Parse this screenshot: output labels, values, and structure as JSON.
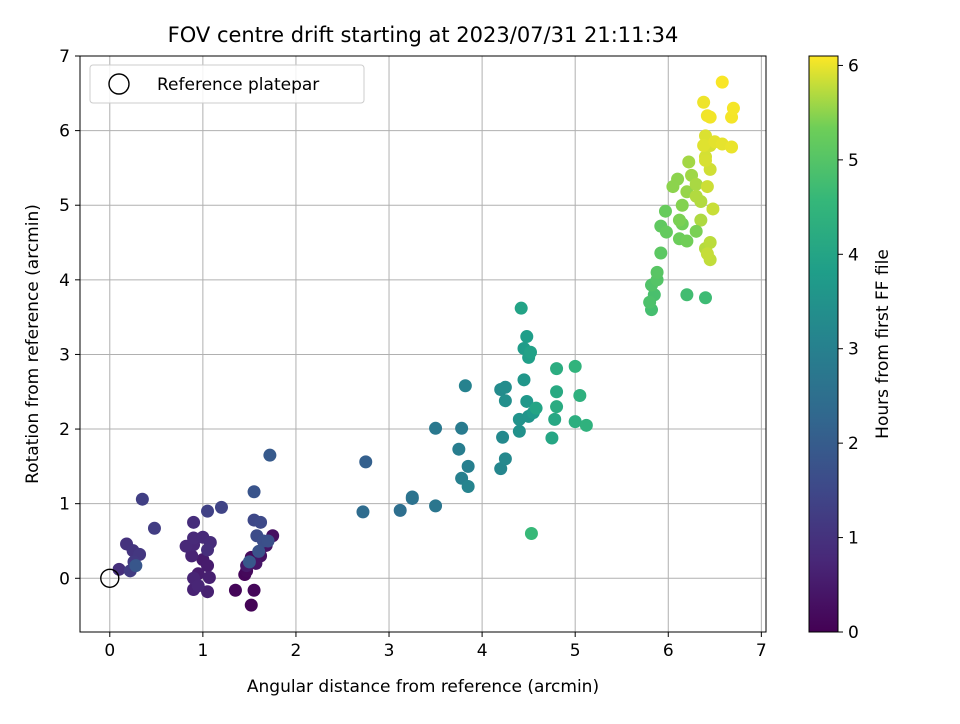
{
  "chart_data": {
    "type": "scatter",
    "title": "FOV centre drift starting at 2023/07/31 21:11:34",
    "xlabel": "Angular distance from reference (arcmin)",
    "ylabel": "Rotation from reference (arcmin)",
    "xlim": [
      -0.32,
      7.05
    ],
    "ylim": [
      -0.72,
      7.0
    ],
    "xticks": [
      0,
      1,
      2,
      3,
      4,
      5,
      6,
      7
    ],
    "yticks": [
      0,
      1,
      2,
      3,
      4,
      5,
      6,
      7
    ],
    "grid": true,
    "legend": {
      "placement": "upper-left",
      "entries": [
        {
          "label": "Reference platepar",
          "marker": "open-circle"
        }
      ]
    },
    "reference_point": {
      "x": 0,
      "y": 0,
      "label": "Reference platepar"
    },
    "colorbar": {
      "label": "Hours from first FF file",
      "colormap": "viridis",
      "range": [
        0,
        6.1
      ],
      "ticks": [
        0,
        1,
        2,
        3,
        4,
        5,
        6
      ]
    },
    "points": [
      {
        "x": 1.45,
        "y": 0.05,
        "h": 0.1
      },
      {
        "x": 1.52,
        "y": -0.36,
        "h": 0.05
      },
      {
        "x": 1.35,
        "y": -0.16,
        "h": 0.1
      },
      {
        "x": 1.55,
        "y": -0.16,
        "h": 0.12
      },
      {
        "x": 1.47,
        "y": 0.1,
        "h": 0.15
      },
      {
        "x": 1.52,
        "y": 0.28,
        "h": 0.2
      },
      {
        "x": 1.75,
        "y": 0.57,
        "h": 0.25
      },
      {
        "x": 1.62,
        "y": 0.3,
        "h": 0.3
      },
      {
        "x": 1.68,
        "y": 0.44,
        "h": 0.35
      },
      {
        "x": 1.57,
        "y": 0.2,
        "h": 0.4
      },
      {
        "x": 1.47,
        "y": 0.17,
        "h": 0.45
      },
      {
        "x": 1.0,
        "y": 0.25,
        "h": 0.5
      },
      {
        "x": 1.05,
        "y": 0.17,
        "h": 0.52
      },
      {
        "x": 0.95,
        "y": 0.06,
        "h": 0.55
      },
      {
        "x": 1.07,
        "y": 0.01,
        "h": 0.6
      },
      {
        "x": 1.05,
        "y": -0.18,
        "h": 0.62
      },
      {
        "x": 0.9,
        "y": -0.15,
        "h": 0.65
      },
      {
        "x": 0.88,
        "y": 0.3,
        "h": 0.68
      },
      {
        "x": 0.9,
        "y": 0.0,
        "h": 0.7
      },
      {
        "x": 0.95,
        "y": -0.1,
        "h": 0.72
      },
      {
        "x": 0.9,
        "y": 0.45,
        "h": 0.75
      },
      {
        "x": 0.82,
        "y": 0.43,
        "h": 0.78
      },
      {
        "x": 0.9,
        "y": 0.54,
        "h": 0.8
      },
      {
        "x": 1.0,
        "y": 0.55,
        "h": 0.82
      },
      {
        "x": 1.08,
        "y": 0.48,
        "h": 0.85
      },
      {
        "x": 0.9,
        "y": 0.75,
        "h": 0.88
      },
      {
        "x": 1.05,
        "y": 0.38,
        "h": 0.9
      },
      {
        "x": 0.1,
        "y": 0.12,
        "h": 0.95
      },
      {
        "x": 0.18,
        "y": 0.46,
        "h": 1.0
      },
      {
        "x": 0.25,
        "y": 0.37,
        "h": 1.05
      },
      {
        "x": 0.32,
        "y": 0.32,
        "h": 1.1
      },
      {
        "x": 0.26,
        "y": 0.22,
        "h": 1.15
      },
      {
        "x": 0.22,
        "y": 0.1,
        "h": 1.2
      },
      {
        "x": 0.48,
        "y": 0.67,
        "h": 1.25
      },
      {
        "x": 0.35,
        "y": 1.06,
        "h": 1.3
      },
      {
        "x": 1.05,
        "y": 0.9,
        "h": 1.35
      },
      {
        "x": 1.2,
        "y": 0.95,
        "h": 1.4
      },
      {
        "x": 1.55,
        "y": 0.78,
        "h": 1.5
      },
      {
        "x": 1.62,
        "y": 0.75,
        "h": 1.55
      },
      {
        "x": 1.58,
        "y": 0.57,
        "h": 1.6
      },
      {
        "x": 1.65,
        "y": 0.5,
        "h": 1.65
      },
      {
        "x": 1.7,
        "y": 0.5,
        "h": 1.7
      },
      {
        "x": 1.6,
        "y": 0.36,
        "h": 1.75
      },
      {
        "x": 1.55,
        "y": 1.16,
        "h": 1.8
      },
      {
        "x": 0.28,
        "y": 0.17,
        "h": 1.85
      },
      {
        "x": 1.5,
        "y": 0.22,
        "h": 1.9
      },
      {
        "x": 1.72,
        "y": 1.65,
        "h": 1.95
      },
      {
        "x": 2.75,
        "y": 1.56,
        "h": 2.1
      },
      {
        "x": 2.72,
        "y": 0.89,
        "h": 2.4
      },
      {
        "x": 3.12,
        "y": 0.91,
        "h": 2.5
      },
      {
        "x": 3.25,
        "y": 1.07,
        "h": 2.55
      },
      {
        "x": 3.25,
        "y": 1.09,
        "h": 2.6
      },
      {
        "x": 3.5,
        "y": 0.97,
        "h": 2.7
      },
      {
        "x": 3.5,
        "y": 2.01,
        "h": 2.75
      },
      {
        "x": 3.78,
        "y": 2.01,
        "h": 2.85
      },
      {
        "x": 3.75,
        "y": 1.73,
        "h": 2.9
      },
      {
        "x": 3.85,
        "y": 1.5,
        "h": 2.95
      },
      {
        "x": 3.78,
        "y": 1.34,
        "h": 3.0
      },
      {
        "x": 3.82,
        "y": 2.58,
        "h": 3.05
      },
      {
        "x": 3.85,
        "y": 1.23,
        "h": 3.1
      },
      {
        "x": 4.2,
        "y": 1.47,
        "h": 3.15
      },
      {
        "x": 4.25,
        "y": 1.6,
        "h": 3.2
      },
      {
        "x": 4.22,
        "y": 1.89,
        "h": 3.25
      },
      {
        "x": 4.2,
        "y": 2.53,
        "h": 3.3
      },
      {
        "x": 4.25,
        "y": 2.56,
        "h": 3.35
      },
      {
        "x": 4.25,
        "y": 2.38,
        "h": 3.4
      },
      {
        "x": 4.4,
        "y": 1.97,
        "h": 3.45
      },
      {
        "x": 4.4,
        "y": 2.13,
        "h": 3.5
      },
      {
        "x": 4.5,
        "y": 2.17,
        "h": 3.55
      },
      {
        "x": 4.45,
        "y": 2.66,
        "h": 3.6
      },
      {
        "x": 4.48,
        "y": 2.37,
        "h": 3.65
      },
      {
        "x": 4.55,
        "y": 2.22,
        "h": 3.7
      },
      {
        "x": 4.45,
        "y": 3.08,
        "h": 3.75
      },
      {
        "x": 4.48,
        "y": 3.24,
        "h": 3.8
      },
      {
        "x": 4.5,
        "y": 2.96,
        "h": 3.85
      },
      {
        "x": 4.52,
        "y": 3.03,
        "h": 3.9
      },
      {
        "x": 4.42,
        "y": 3.62,
        "h": 3.95
      },
      {
        "x": 4.58,
        "y": 2.28,
        "h": 4.0
      },
      {
        "x": 4.75,
        "y": 1.88,
        "h": 4.05
      },
      {
        "x": 4.78,
        "y": 2.13,
        "h": 4.1
      },
      {
        "x": 4.8,
        "y": 2.5,
        "h": 4.15
      },
      {
        "x": 4.8,
        "y": 2.3,
        "h": 4.2
      },
      {
        "x": 4.8,
        "y": 2.81,
        "h": 4.25
      },
      {
        "x": 5.0,
        "y": 2.1,
        "h": 4.3
      },
      {
        "x": 5.05,
        "y": 2.45,
        "h": 4.35
      },
      {
        "x": 5.12,
        "y": 2.05,
        "h": 4.4
      },
      {
        "x": 5.0,
        "y": 2.84,
        "h": 4.45
      },
      {
        "x": 4.53,
        "y": 0.6,
        "h": 4.6
      },
      {
        "x": 6.4,
        "y": 3.76,
        "h": 4.7
      },
      {
        "x": 6.2,
        "y": 3.8,
        "h": 4.75
      },
      {
        "x": 5.82,
        "y": 3.6,
        "h": 4.8
      },
      {
        "x": 5.85,
        "y": 3.8,
        "h": 4.85
      },
      {
        "x": 5.8,
        "y": 3.7,
        "h": 4.9
      },
      {
        "x": 5.82,
        "y": 3.93,
        "h": 4.95
      },
      {
        "x": 5.88,
        "y": 4.0,
        "h": 5.0
      },
      {
        "x": 5.88,
        "y": 4.1,
        "h": 5.05
      },
      {
        "x": 5.92,
        "y": 4.36,
        "h": 5.1
      },
      {
        "x": 5.92,
        "y": 4.72,
        "h": 5.15
      },
      {
        "x": 5.98,
        "y": 4.64,
        "h": 5.2
      },
      {
        "x": 5.97,
        "y": 4.92,
        "h": 5.25
      },
      {
        "x": 6.12,
        "y": 4.55,
        "h": 5.3
      },
      {
        "x": 6.15,
        "y": 4.75,
        "h": 5.35
      },
      {
        "x": 6.12,
        "y": 4.8,
        "h": 5.4
      },
      {
        "x": 6.15,
        "y": 5.0,
        "h": 5.45
      },
      {
        "x": 6.1,
        "y": 5.35,
        "h": 5.5
      },
      {
        "x": 6.2,
        "y": 5.18,
        "h": 5.55
      },
      {
        "x": 6.25,
        "y": 5.4,
        "h": 5.6
      },
      {
        "x": 6.22,
        "y": 5.58,
        "h": 5.62
      },
      {
        "x": 6.3,
        "y": 5.28,
        "h": 5.65
      },
      {
        "x": 6.35,
        "y": 4.8,
        "h": 5.68
      },
      {
        "x": 6.35,
        "y": 5.05,
        "h": 5.7
      },
      {
        "x": 6.4,
        "y": 4.42,
        "h": 5.72
      },
      {
        "x": 6.45,
        "y": 4.5,
        "h": 5.75
      },
      {
        "x": 6.45,
        "y": 4.27,
        "h": 5.78
      },
      {
        "x": 6.42,
        "y": 4.35,
        "h": 5.8
      },
      {
        "x": 6.48,
        "y": 4.95,
        "h": 5.82
      },
      {
        "x": 6.42,
        "y": 5.25,
        "h": 5.84
      },
      {
        "x": 6.45,
        "y": 5.48,
        "h": 5.86
      },
      {
        "x": 6.4,
        "y": 5.65,
        "h": 5.88
      },
      {
        "x": 6.45,
        "y": 5.8,
        "h": 5.9
      },
      {
        "x": 6.4,
        "y": 5.93,
        "h": 5.92
      },
      {
        "x": 6.38,
        "y": 5.8,
        "h": 5.94
      },
      {
        "x": 6.5,
        "y": 5.85,
        "h": 5.96
      },
      {
        "x": 6.58,
        "y": 5.82,
        "h": 5.98
      },
      {
        "x": 6.68,
        "y": 5.78,
        "h": 6.0
      },
      {
        "x": 6.38,
        "y": 6.38,
        "h": 6.02
      },
      {
        "x": 6.42,
        "y": 6.2,
        "h": 6.03
      },
      {
        "x": 6.45,
        "y": 6.18,
        "h": 6.04
      },
      {
        "x": 6.68,
        "y": 6.18,
        "h": 6.05
      },
      {
        "x": 6.7,
        "y": 6.3,
        "h": 6.06
      },
      {
        "x": 6.58,
        "y": 6.65,
        "h": 6.08
      },
      {
        "x": 6.4,
        "y": 5.6,
        "h": 5.9
      },
      {
        "x": 6.3,
        "y": 5.12,
        "h": 5.7
      },
      {
        "x": 6.05,
        "y": 5.25,
        "h": 5.5
      },
      {
        "x": 6.2,
        "y": 4.52,
        "h": 5.35
      },
      {
        "x": 6.3,
        "y": 4.65,
        "h": 5.4
      }
    ]
  }
}
